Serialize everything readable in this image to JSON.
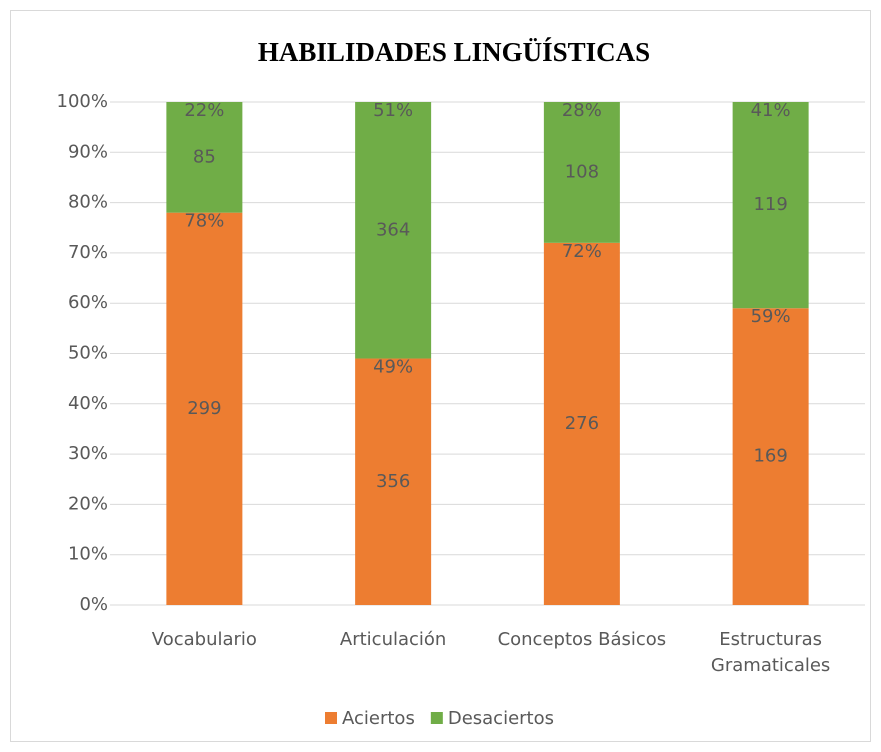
{
  "chart_data": {
    "type": "stacked_bar_100",
    "title": "HABILIDADES LINGÜÍSTICAS",
    "categories": [
      "Vocabulario",
      "Articulación",
      "Conceptos Básicos",
      "Estructuras Gramaticales"
    ],
    "series": [
      {
        "name": "Aciertos",
        "color": "#ed7d31",
        "values": [
          78,
          49,
          72,
          59
        ],
        "value_labels": [
          "78%",
          "49%",
          "72%",
          "59%"
        ],
        "counts": [
          299,
          356,
          276,
          169
        ]
      },
      {
        "name": "Desaciertos",
        "color": "#70ad47",
        "values": [
          22,
          51,
          28,
          41
        ],
        "value_labels": [
          "22%",
          "51%",
          "28%",
          "41%"
        ],
        "counts": [
          85,
          364,
          108,
          119
        ]
      }
    ],
    "ylim": [
      0,
      100
    ],
    "yticks": [
      {
        "value": 0,
        "label": "0%"
      },
      {
        "value": 10,
        "label": "10%"
      },
      {
        "value": 20,
        "label": "20%"
      },
      {
        "value": 30,
        "label": "30%"
      },
      {
        "value": 40,
        "label": "40%"
      },
      {
        "value": 50,
        "label": "50%"
      },
      {
        "value": 60,
        "label": "60%"
      },
      {
        "value": 70,
        "label": "70%"
      },
      {
        "value": 80,
        "label": "80%"
      },
      {
        "value": 90,
        "label": "90%"
      },
      {
        "value": 100,
        "label": "100%"
      }
    ],
    "grid": true,
    "legend": "bottom"
  }
}
